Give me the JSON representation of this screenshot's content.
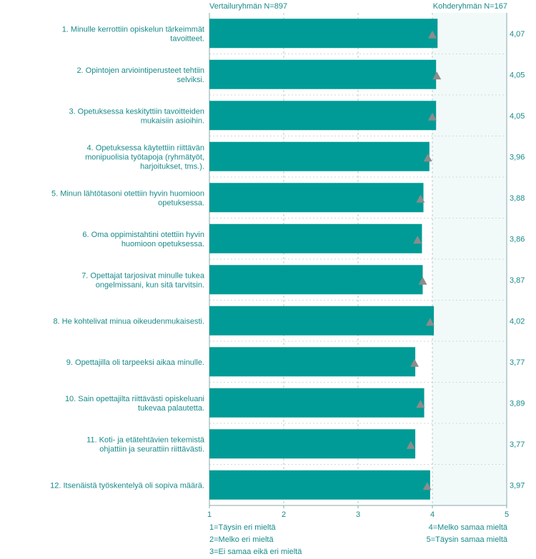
{
  "header": {
    "left": "Vertailuryhmän  N=897",
    "right": "Kohderyhmän N=167"
  },
  "legend": {
    "left": [
      "1=Täysin eri mieltä",
      "2=Melko eri mieltä",
      "3=Ei samaa eikä eri mieltä"
    ],
    "right": [
      "4=Melko samaa mieltä",
      "5=Täysin samaa mieltä"
    ]
  },
  "colors": {
    "bar": "#009b96",
    "marker": "#8c8c8c",
    "text": "#1a8a8a",
    "plot_bg": "#f2faf9",
    "grid": "#b8c8c8"
  },
  "chart_data": {
    "type": "bar",
    "orientation": "horizontal",
    "xlim": [
      1,
      5
    ],
    "xticks": [
      "1",
      "2",
      "3",
      "4",
      "5"
    ],
    "grid": true,
    "categories": [
      [
        "1. Minulle kerrottiin opiskelun tärkeimmät",
        "tavoitteet."
      ],
      [
        "2. Opintojen arviointiperusteet tehtiin",
        "selviksi."
      ],
      [
        "3. Opetuksessa keskityttiin tavoitteiden",
        "mukaisiin asioihin."
      ],
      [
        "4. Opetuksessa käytettiin riittävän",
        "monipuolisia työtapoja (ryhmätyöt,",
        "harjoitukset, tms.)."
      ],
      [
        "5. Minun lähtötasoni otettiin hyvin huomioon",
        "opetuksessa."
      ],
      [
        "6. Oma oppimistahtini otettiin hyvin",
        "huomioon opetuksessa."
      ],
      [
        "7. Opettajat tarjosivat minulle tukea",
        "ongelmissani, kun sitä tarvitsin."
      ],
      [
        "8. He kohtelivat minua oikeudenmukaisesti."
      ],
      [
        "9. Opettajilla oli tarpeeksi aikaa minulle."
      ],
      [
        "10. Sain opettajilta riittävästi opiskeluani",
        "tukevaa palautetta."
      ],
      [
        "11. Koti- ja etätehtävien tekemistä",
        "ohjattiin ja seurattiin riittävästi."
      ],
      [
        "12. Itsenäistä työskentelyä oli sopiva määrä."
      ]
    ],
    "series": [
      {
        "name": "Kohderyhmän N=167",
        "values": [
          4.07,
          4.05,
          4.05,
          3.96,
          3.88,
          3.86,
          3.87,
          4.02,
          3.77,
          3.89,
          3.77,
          3.97
        ]
      },
      {
        "name": "Vertailuryhmän  N=897",
        "values": [
          4.0,
          4.06,
          4.0,
          3.94,
          3.84,
          3.8,
          3.87,
          3.97,
          3.76,
          3.84,
          3.71,
          3.93
        ]
      }
    ],
    "value_labels": [
      "4,07",
      "4,05",
      "4,05",
      "3,96",
      "3,88",
      "3,86",
      "3,87",
      "4,02",
      "3,77",
      "3,89",
      "3,77",
      "3,97"
    ]
  }
}
